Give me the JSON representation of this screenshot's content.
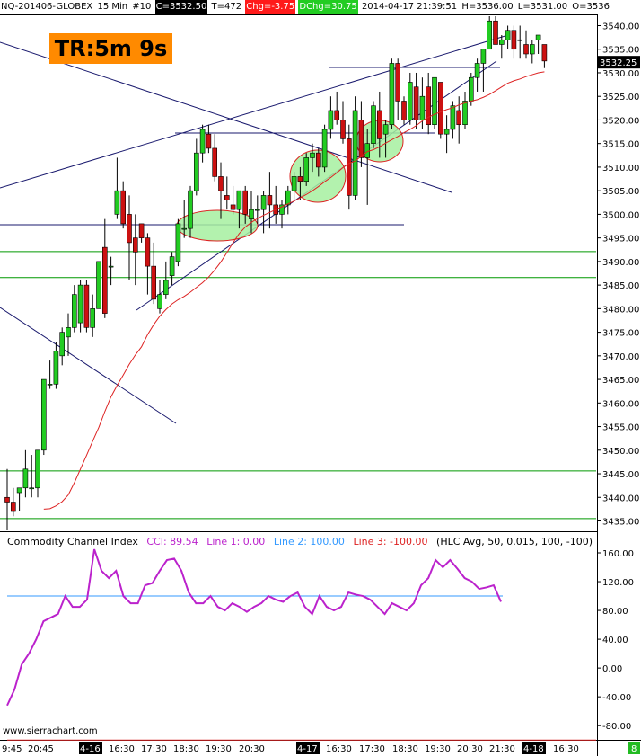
{
  "header": {
    "symbol": "NQ-201406-GLOBEX",
    "interval": "15 Min",
    "number": "#10",
    "close": "C=3532.50",
    "trades": "T=472",
    "change": "Chg=-3.75",
    "day_change": "DChg=30.75",
    "datetime": "2014-04-17 21:39:51",
    "high": "H=3536.00",
    "low": "L=3531.00",
    "open": "O=3536"
  },
  "badge": "TR:5m 9s",
  "watermark": "www.sierrachart.com",
  "cci_legend": {
    "name": "Commodity Channel Index",
    "cci": "CCI: 89.54",
    "line1": "Line 1: 0.00",
    "line2": "Line 2: 100.00",
    "line3": "Line 3: -100.00",
    "params": "(HLC Avg, 50, 0.015, 100, -100)"
  },
  "colors": {
    "up_candle": "#22cc22",
    "down_candle": "#cc1111",
    "moving_average": "#dd2222",
    "cci_line": "#bb22cc",
    "cci_level_100": "#3399ff",
    "cci_level_minus100": "#dd2222",
    "horizontal_level": "#009900",
    "trendline": "#1a1a6e",
    "highlight_fill": "#a6f0a0",
    "highlight_edge": "#dd2222",
    "last_price_bg": "#000000",
    "indicator_tag_bg": "#22bb22"
  },
  "indicator_tag": "8",
  "chart_data": [
    {
      "type": "candlestick",
      "title": "",
      "x_tick_labels": [
        "9:45",
        "20:45",
        "4-16",
        "16:30",
        "17:30",
        "18:30",
        "19:30",
        "20:30",
        "4-17",
        "16:30",
        "17:30",
        "18:30",
        "19:30",
        "20:30",
        "21:30",
        "4-18",
        "16:30"
      ],
      "y_tick_labels": [
        "3540.00",
        "3535.00",
        "3530.00",
        "3525.00",
        "3520.00",
        "3515.00",
        "3510.00",
        "3505.00",
        "3500.00",
        "3495.00",
        "3490.00",
        "3485.00",
        "3480.00",
        "3475.00",
        "3470.00",
        "3465.00",
        "3460.00",
        "3455.00",
        "3450.00",
        "3445.00",
        "3440.00",
        "3435.00"
      ],
      "y_tick_values": [
        3540,
        3535,
        3530,
        3525,
        3520,
        3515,
        3510,
        3505,
        3500,
        3495,
        3490,
        3485,
        3480,
        3475,
        3470,
        3465,
        3460,
        3455,
        3450,
        3445,
        3440,
        3435
      ],
      "ylim": [
        3433,
        3542
      ],
      "last_price": 3532.25,
      "last_price_label": "3532.25",
      "bars": [
        [
          3440,
          3446,
          3433,
          3439
        ],
        [
          3439,
          3442,
          3436,
          3437
        ],
        [
          3441,
          3442,
          3437,
          3442
        ],
        [
          3442,
          3450,
          3440,
          3446
        ],
        [
          3442,
          3449,
          3440,
          3442
        ],
        [
          3442,
          3450,
          3440,
          3450
        ],
        [
          3450,
          3465,
          3449,
          3465
        ],
        [
          3464,
          3469,
          3463,
          3464
        ],
        [
          3464,
          3473,
          3463,
          3471
        ],
        [
          3470,
          3476,
          3468,
          3475
        ],
        [
          3474,
          3479,
          3470,
          3476
        ],
        [
          3476,
          3485,
          3475,
          3483
        ],
        [
          3477,
          3486,
          3475,
          3485
        ],
        [
          3485,
          3486,
          3475,
          3476
        ],
        [
          3476,
          3483,
          3474,
          3480
        ],
        [
          3480,
          3490,
          3480,
          3490
        ],
        [
          3493,
          3499,
          3478,
          3479
        ],
        [
          3489,
          3491,
          3485,
          3489
        ],
        [
          3500,
          3512,
          3499,
          3505
        ],
        [
          3505,
          3507,
          3497,
          3498
        ],
        [
          3500,
          3504,
          3486,
          3494
        ],
        [
          3495,
          3500,
          3485,
          3492
        ],
        [
          3498,
          3498,
          3494,
          3495
        ],
        [
          3495,
          3496,
          3483,
          3489
        ],
        [
          3489,
          3494,
          3481,
          3482
        ],
        [
          3480,
          3486,
          3479,
          3483
        ],
        [
          3483,
          3490,
          3482,
          3486
        ],
        [
          3487,
          3492,
          3485,
          3491
        ],
        [
          3490,
          3499,
          3489,
          3498
        ],
        [
          3497,
          3503,
          3495,
          3497
        ],
        [
          3497,
          3506,
          3495,
          3505
        ],
        [
          3505,
          3516,
          3504,
          3513
        ],
        [
          3513,
          3519,
          3511,
          3518
        ],
        [
          3517,
          3519,
          3513,
          3514
        ],
        [
          3514,
          3517,
          3507,
          3508
        ],
        [
          3508,
          3511,
          3499,
          3505
        ],
        [
          3504,
          3508,
          3501,
          3503
        ],
        [
          3502,
          3506,
          3500,
          3501
        ],
        [
          3501,
          3505,
          3497,
          3505
        ],
        [
          3505,
          3506,
          3498,
          3500
        ],
        [
          3499,
          3505,
          3496,
          3501
        ],
        [
          3501,
          3504,
          3498,
          3501
        ],
        [
          3501,
          3505,
          3496,
          3504
        ],
        [
          3504,
          3509,
          3497,
          3502
        ],
        [
          3502,
          3506,
          3498,
          3500
        ],
        [
          3500,
          3503,
          3497,
          3502
        ],
        [
          3502,
          3506,
          3500,
          3505
        ],
        [
          3505,
          3509,
          3503,
          3508
        ],
        [
          3508,
          3510,
          3503,
          3507
        ],
        [
          3507,
          3513,
          3506,
          3512
        ],
        [
          3512,
          3515,
          3509,
          3513
        ],
        [
          3513,
          3514,
          3508,
          3510
        ],
        [
          3510,
          3519,
          3509,
          3518
        ],
        [
          3518,
          3525,
          3516,
          3522
        ],
        [
          3522,
          3526,
          3519,
          3520
        ],
        [
          3520,
          3524,
          3515,
          3516
        ],
        [
          3516,
          3519,
          3501,
          3504
        ],
        [
          3504,
          3525,
          3503,
          3522
        ],
        [
          3520,
          3524,
          3510,
          3512
        ],
        [
          3512,
          3518,
          3502,
          3515
        ],
        [
          3515,
          3524,
          3514,
          3523
        ],
        [
          3522,
          3526,
          3512,
          3516
        ],
        [
          3517,
          3520,
          3512,
          3519
        ],
        [
          3519,
          3533,
          3518,
          3532
        ],
        [
          3532,
          3533,
          3520,
          3524
        ],
        [
          3524,
          3525,
          3519,
          3520
        ],
        [
          3520,
          3530,
          3519,
          3528
        ],
        [
          3527,
          3530,
          3518,
          3520
        ],
        [
          3520,
          3529,
          3518,
          3525
        ],
        [
          3527,
          3530,
          3517,
          3519
        ],
        [
          3519,
          3529,
          3518,
          3529
        ],
        [
          3528,
          3528,
          3516,
          3517
        ],
        [
          3517,
          3521,
          3513,
          3518
        ],
        [
          3518,
          3524,
          3516,
          3523
        ],
        [
          3522,
          3525,
          3515,
          3519
        ],
        [
          3519,
          3526,
          3518,
          3524
        ],
        [
          3524,
          3530,
          3523,
          3529
        ],
        [
          3529,
          3533,
          3526,
          3532
        ],
        [
          3532,
          3535,
          3526,
          3535
        ],
        [
          3535,
          3542,
          3535,
          3541
        ],
        [
          3541,
          3542,
          3536,
          3536
        ],
        [
          3536,
          3538,
          3533,
          3537
        ],
        [
          3537,
          3540,
          3535,
          3539
        ],
        [
          3539,
          3540,
          3533,
          3535
        ],
        [
          3537,
          3540,
          3533,
          3537
        ],
        [
          3536,
          3539,
          3533,
          3534
        ],
        [
          3534,
          3537,
          3532,
          3536
        ],
        [
          3537,
          3538,
          3534,
          3538
        ],
        [
          3536,
          3536,
          3531,
          3532.5
        ]
      ],
      "moving_average": [
        3437.5,
        3437.6,
        3438.2,
        3439.1,
        3440.5,
        3443.1,
        3446,
        3448.9,
        3451.9,
        3454.8,
        3458.2,
        3461.3,
        3463.7,
        3465.9,
        3468.2,
        3470.2,
        3471.9,
        3474.5,
        3476.6,
        3478.4,
        3479.8,
        3481,
        3481.9,
        3482.6,
        3483.5,
        3484.5,
        3485.5,
        3486.7,
        3488.2,
        3489.9,
        3491.9,
        3494,
        3495.9,
        3497.3,
        3498.3,
        3499.1,
        3499.8,
        3500.4,
        3501,
        3501.6,
        3502.2,
        3502.8,
        3503.5,
        3504.2,
        3505,
        3505.9,
        3506.9,
        3507.8,
        3508.8,
        3509.9,
        3510.8,
        3511.3,
        3512.3,
        3513.3,
        3513.7,
        3514.3,
        3515.1,
        3515.8,
        3516.5,
        3517.3,
        3518,
        3518.8,
        3519.8,
        3520.6,
        3521.2,
        3521.7,
        3522.2,
        3522.6,
        3523.2,
        3523.6,
        3524,
        3524.3,
        3524.8,
        3525.4,
        3526.2,
        3527,
        3527.8,
        3528.3,
        3528.7,
        3529.2,
        3529.6,
        3530,
        3530.2
      ]
    },
    {
      "type": "line",
      "title": "",
      "name": "Commodity Channel Index",
      "ylim": [
        -96,
        175
      ],
      "y_tick_labels": [
        "160.00",
        "120.00",
        "80.00",
        "40.00",
        "0.00",
        "-40.00",
        "-80.00"
      ],
      "y_tick_values": [
        160,
        120,
        80,
        40,
        0,
        -40,
        -80
      ],
      "levels": [
        0,
        100,
        -100
      ],
      "values": [
        -52,
        -30,
        5,
        20,
        40,
        65,
        70,
        75,
        100,
        85,
        85,
        95,
        165,
        135,
        125,
        135,
        100,
        90,
        90,
        115,
        118,
        135,
        150,
        152,
        135,
        105,
        90,
        90,
        100,
        85,
        80,
        90,
        85,
        78,
        85,
        90,
        100,
        95,
        92,
        100,
        105,
        85,
        75,
        100,
        85,
        80,
        85,
        105,
        102,
        100,
        95,
        85,
        75,
        90,
        85,
        80,
        90,
        115,
        125,
        150,
        140,
        150,
        138,
        125,
        120,
        110,
        112,
        115,
        92
      ]
    }
  ]
}
